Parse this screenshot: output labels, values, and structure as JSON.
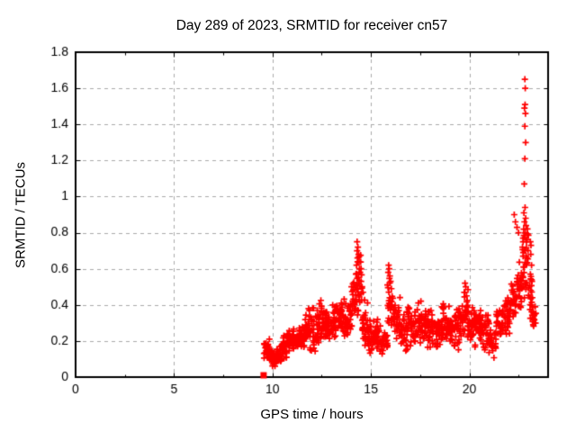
{
  "figure": {
    "background_color": "#ffffff",
    "text_color": "#000000"
  },
  "chart_data": {
    "type": "scatter",
    "title": "Day 289 of 2023, SRMTID for receiver cn57",
    "xlabel": "GPS time / hours",
    "ylabel": "SRMTID / TECUs",
    "xlim": [
      0,
      24
    ],
    "ylim": [
      0,
      1.8
    ],
    "xticks": {
      "values": [
        0,
        5,
        10,
        15,
        20
      ],
      "labels": [
        "0",
        "5",
        "10",
        "15",
        "20"
      ]
    },
    "xminor_ticks": [
      2.5,
      7.5,
      12.5,
      17.5,
      22.5
    ],
    "yticks": {
      "values": [
        0,
        0.2,
        0.4,
        0.6,
        0.8,
        1,
        1.2,
        1.4,
        1.6,
        1.8
      ],
      "labels": [
        "0",
        "0.2",
        "0.4",
        "0.6",
        "0.8",
        "1",
        "1.2",
        "1.4",
        "1.6",
        "1.8"
      ]
    },
    "grid": {
      "show": true,
      "color": "#aaaaaa",
      "dash": [
        4,
        4
      ],
      "at": "major-ticks"
    },
    "axis_color": "#000000",
    "legend": "none",
    "marker": {
      "shape": "plus",
      "color": "#ff0000",
      "size": 7,
      "line_width": 1.7
    },
    "series": [
      {
        "name": "SRMTID",
        "data_time_range_hours": [
          9.5,
          23.4
        ],
        "zero_start_point": {
          "x": 9.55,
          "y": 0.01,
          "shape": "filled-square"
        },
        "cluster_format": [
          "t_start",
          "t_end",
          "y_min",
          "y_max",
          "n_points"
        ],
        "scatter_clusters": [
          [
            9.55,
            9.85,
            0.1,
            0.22,
            30
          ],
          [
            9.85,
            10.15,
            0.05,
            0.16,
            26
          ],
          [
            10.15,
            10.45,
            0.06,
            0.18,
            26
          ],
          [
            10.45,
            10.75,
            0.09,
            0.24,
            28
          ],
          [
            10.75,
            11.05,
            0.12,
            0.3,
            30
          ],
          [
            11.05,
            11.35,
            0.13,
            0.28,
            28
          ],
          [
            11.35,
            11.65,
            0.14,
            0.33,
            30
          ],
          [
            11.65,
            11.95,
            0.13,
            0.4,
            30
          ],
          [
            11.95,
            12.3,
            0.13,
            0.4,
            32
          ],
          [
            12.3,
            12.65,
            0.15,
            0.43,
            32
          ],
          [
            12.65,
            13.0,
            0.18,
            0.4,
            32
          ],
          [
            13.0,
            13.35,
            0.2,
            0.43,
            32
          ],
          [
            13.35,
            13.7,
            0.2,
            0.45,
            32
          ],
          [
            13.7,
            14.0,
            0.22,
            0.46,
            30
          ],
          [
            14.0,
            14.25,
            0.24,
            0.55,
            24
          ],
          [
            14.25,
            14.55,
            0.3,
            0.72,
            28
          ],
          [
            14.55,
            14.85,
            0.15,
            0.45,
            28
          ],
          [
            14.85,
            15.2,
            0.13,
            0.34,
            30
          ],
          [
            15.2,
            15.55,
            0.12,
            0.33,
            30
          ],
          [
            15.55,
            15.85,
            0.1,
            0.3,
            26
          ],
          [
            15.85,
            16.15,
            0.22,
            0.58,
            28
          ],
          [
            16.15,
            16.5,
            0.15,
            0.45,
            30
          ],
          [
            16.5,
            16.85,
            0.1,
            0.38,
            30
          ],
          [
            16.85,
            17.2,
            0.15,
            0.4,
            30
          ],
          [
            17.2,
            17.55,
            0.15,
            0.44,
            32
          ],
          [
            17.55,
            17.9,
            0.15,
            0.43,
            32
          ],
          [
            17.9,
            18.25,
            0.12,
            0.4,
            32
          ],
          [
            18.25,
            18.6,
            0.1,
            0.38,
            32
          ],
          [
            18.6,
            18.95,
            0.12,
            0.42,
            32
          ],
          [
            18.95,
            19.3,
            0.15,
            0.4,
            32
          ],
          [
            19.3,
            19.65,
            0.15,
            0.42,
            32
          ],
          [
            19.65,
            19.95,
            0.18,
            0.5,
            30
          ],
          [
            19.95,
            20.3,
            0.15,
            0.4,
            32
          ],
          [
            20.3,
            20.65,
            0.15,
            0.38,
            32
          ],
          [
            20.65,
            21.0,
            0.14,
            0.36,
            30
          ],
          [
            21.0,
            21.35,
            0.1,
            0.3,
            26
          ],
          [
            21.35,
            21.7,
            0.16,
            0.4,
            28
          ],
          [
            21.7,
            22.05,
            0.22,
            0.46,
            30
          ],
          [
            22.05,
            22.4,
            0.28,
            0.55,
            30
          ],
          [
            22.4,
            22.7,
            0.33,
            0.65,
            28
          ],
          [
            22.7,
            23.0,
            0.4,
            0.85,
            30
          ],
          [
            23.0,
            23.2,
            0.3,
            0.62,
            16
          ],
          [
            23.2,
            23.4,
            0.27,
            0.42,
            14
          ]
        ],
        "peak_points": [
          [
            14.3,
            0.75
          ],
          [
            14.34,
            0.72
          ],
          [
            14.3,
            0.7
          ],
          [
            14.37,
            0.68
          ],
          [
            14.32,
            0.66
          ],
          [
            14.4,
            0.64
          ],
          [
            14.27,
            0.62
          ],
          [
            14.42,
            0.6
          ],
          [
            14.45,
            0.58
          ],
          [
            14.24,
            0.57
          ],
          [
            14.5,
            0.53
          ],
          [
            14.55,
            0.5
          ],
          [
            14.6,
            0.47
          ],
          [
            15.9,
            0.62
          ],
          [
            15.93,
            0.6
          ],
          [
            15.88,
            0.58
          ],
          [
            15.96,
            0.56
          ],
          [
            16.0,
            0.53
          ],
          [
            15.84,
            0.51
          ],
          [
            16.04,
            0.49
          ],
          [
            19.78,
            0.52
          ],
          [
            19.82,
            0.5
          ],
          [
            19.74,
            0.47
          ],
          [
            19.86,
            0.45
          ],
          [
            22.28,
            0.9
          ],
          [
            22.34,
            0.86
          ],
          [
            22.42,
            0.83
          ],
          [
            22.5,
            0.8
          ],
          [
            22.82,
            1.65
          ],
          [
            22.84,
            1.6
          ],
          [
            22.83,
            1.51
          ],
          [
            22.8,
            1.49
          ],
          [
            22.85,
            1.46
          ],
          [
            22.82,
            1.39
          ],
          [
            22.86,
            1.3
          ],
          [
            22.82,
            1.21
          ],
          [
            22.79,
            1.07
          ],
          [
            22.83,
            0.94
          ],
          [
            22.77,
            0.91
          ],
          [
            22.86,
            0.88
          ],
          [
            22.8,
            0.86
          ],
          [
            22.88,
            0.84
          ],
          [
            22.76,
            0.82
          ],
          [
            22.84,
            0.8
          ],
          [
            22.73,
            0.77
          ],
          [
            22.9,
            0.75
          ],
          [
            22.7,
            0.72
          ],
          [
            22.74,
            0.69
          ],
          [
            22.92,
            0.66
          ],
          [
            23.1,
            0.75
          ],
          [
            23.13,
            0.73
          ],
          [
            23.12,
            0.68
          ],
          [
            23.16,
            0.62
          ],
          [
            23.1,
            0.57
          ],
          [
            23.18,
            0.53
          ],
          [
            23.12,
            0.48
          ],
          [
            23.2,
            0.44
          ],
          [
            23.15,
            0.4
          ],
          [
            23.24,
            0.36
          ],
          [
            23.28,
            0.32
          ],
          [
            23.32,
            0.3
          ]
        ]
      }
    ]
  }
}
